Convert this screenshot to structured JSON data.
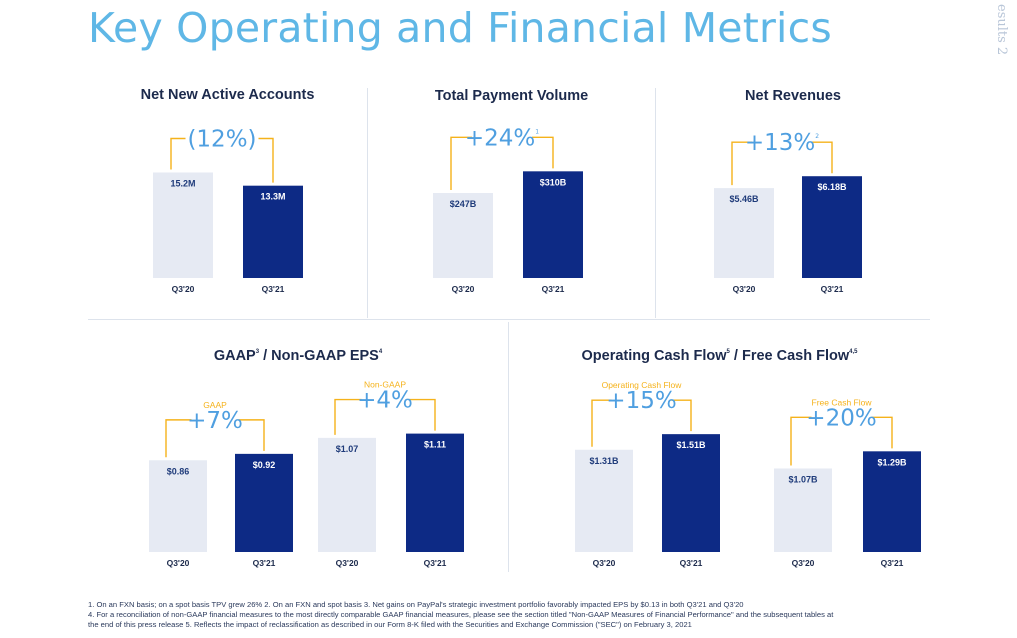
{
  "page": {
    "title": "Key Operating and Financial Metrics",
    "side_label": "esults 2"
  },
  "colors": {
    "prior": "#e6eaf3",
    "current": "#0d2a85",
    "bracket": "#f5b21b",
    "growth_text": "#4f9fe0",
    "sub_text": "#f5b21b",
    "label": "#1c2a4c"
  },
  "chart_data": [
    {
      "type": "bar",
      "title": "Net New Active Accounts",
      "title_sup": "",
      "categories": [
        "Q3'20",
        "Q3'21"
      ],
      "groups": [
        {
          "sub_label": "",
          "growth": "(12%)",
          "growth_sup": "",
          "values": [
            15.2,
            13.3
          ],
          "labels": [
            "15.2M",
            "13.3M"
          ]
        }
      ],
      "ylim": [
        0,
        17
      ]
    },
    {
      "type": "bar",
      "title": "Total Payment Volume",
      "title_sup": "",
      "categories": [
        "Q3'20",
        "Q3'21"
      ],
      "groups": [
        {
          "sub_label": "",
          "growth": "+24%",
          "growth_sup": "1",
          "values": [
            247,
            310
          ],
          "labels": [
            "$247B",
            "$310B"
          ]
        }
      ],
      "ylim": [
        0,
        340
      ]
    },
    {
      "type": "bar",
      "title": "Net Revenues",
      "title_sup": "",
      "categories": [
        "Q3'20",
        "Q3'21"
      ],
      "groups": [
        {
          "sub_label": "",
          "growth": "+13%",
          "growth_sup": "2",
          "values": [
            5.46,
            6.18
          ],
          "labels": [
            "$5.46B",
            "$6.18B"
          ]
        }
      ],
      "ylim": [
        0,
        6.8
      ]
    },
    {
      "type": "bar",
      "title": "GAAP",
      "title_sup": "3",
      "title_rest": " / Non-GAAP EPS",
      "title_rest_sup": "4",
      "categories": [
        "Q3'20",
        "Q3'21"
      ],
      "groups": [
        {
          "sub_label": "GAAP",
          "growth": "+7%",
          "growth_sup": "",
          "values": [
            0.86,
            0.92
          ],
          "labels": [
            "$0.86",
            "$0.92"
          ]
        },
        {
          "sub_label": "Non-GAAP",
          "growth": "+4%",
          "growth_sup": "",
          "values": [
            1.07,
            1.11
          ],
          "labels": [
            "$1.07",
            "$1.11"
          ]
        }
      ],
      "ylim": [
        0,
        1.2
      ]
    },
    {
      "type": "bar",
      "title": "Operating Cash Flow",
      "title_sup": "5",
      "title_rest": " / Free Cash Flow",
      "title_rest_sup": "4,5",
      "categories": [
        "Q3'20",
        "Q3'21"
      ],
      "groups": [
        {
          "sub_label": "Operating Cash Flow",
          "growth": "+15%",
          "growth_sup": "",
          "values": [
            1.31,
            1.51
          ],
          "labels": [
            "$1.31B",
            "$1.51B"
          ]
        },
        {
          "sub_label": "Free Cash Flow",
          "growth": "+20%",
          "growth_sup": "",
          "values": [
            1.07,
            1.29
          ],
          "labels": [
            "$1.07B",
            "$1.29B"
          ]
        }
      ],
      "ylim": [
        0,
        1.64
      ]
    }
  ],
  "footnotes": [
    "1. On an FXN basis; on a spot basis TPV grew 26%     2. On an FXN and spot basis     3. Net gains on PayPal's strategic investment portfolio favorably impacted EPS by $0.13 in both Q3'21 and Q3'20",
    "4. For a reconciliation of non-GAAP financial measures to the most directly comparable GAAP financial measures, please see the section titled \"Non-GAAP Measures of Financial Performance\" and the subsequent tables at",
    "the end of this press release     5. Reflects the impact of reclassification as described in our Form 8-K filed with the Securities and Exchange Commission (\"SEC\") on February 3, 2021"
  ]
}
